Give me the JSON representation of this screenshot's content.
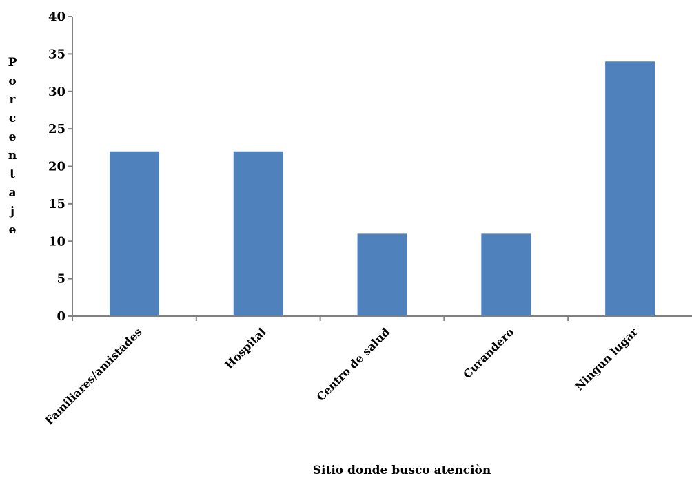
{
  "chart_data": {
    "type": "bar",
    "categories": [
      "Familiares/amistades",
      "Hospital",
      "Centro de salud",
      "Curandero",
      "Ningun lugar"
    ],
    "values": [
      22,
      22,
      11,
      11,
      34
    ],
    "title": "",
    "xlabel": "Sitio donde busco atenciòn",
    "ylabel": "Porcentaje",
    "ylim": [
      0,
      40
    ],
    "yticks": [
      0,
      5,
      10,
      15,
      20,
      25,
      30,
      35,
      40
    ],
    "grid": false,
    "legend": "none",
    "bar_color": "#4F81BD"
  }
}
